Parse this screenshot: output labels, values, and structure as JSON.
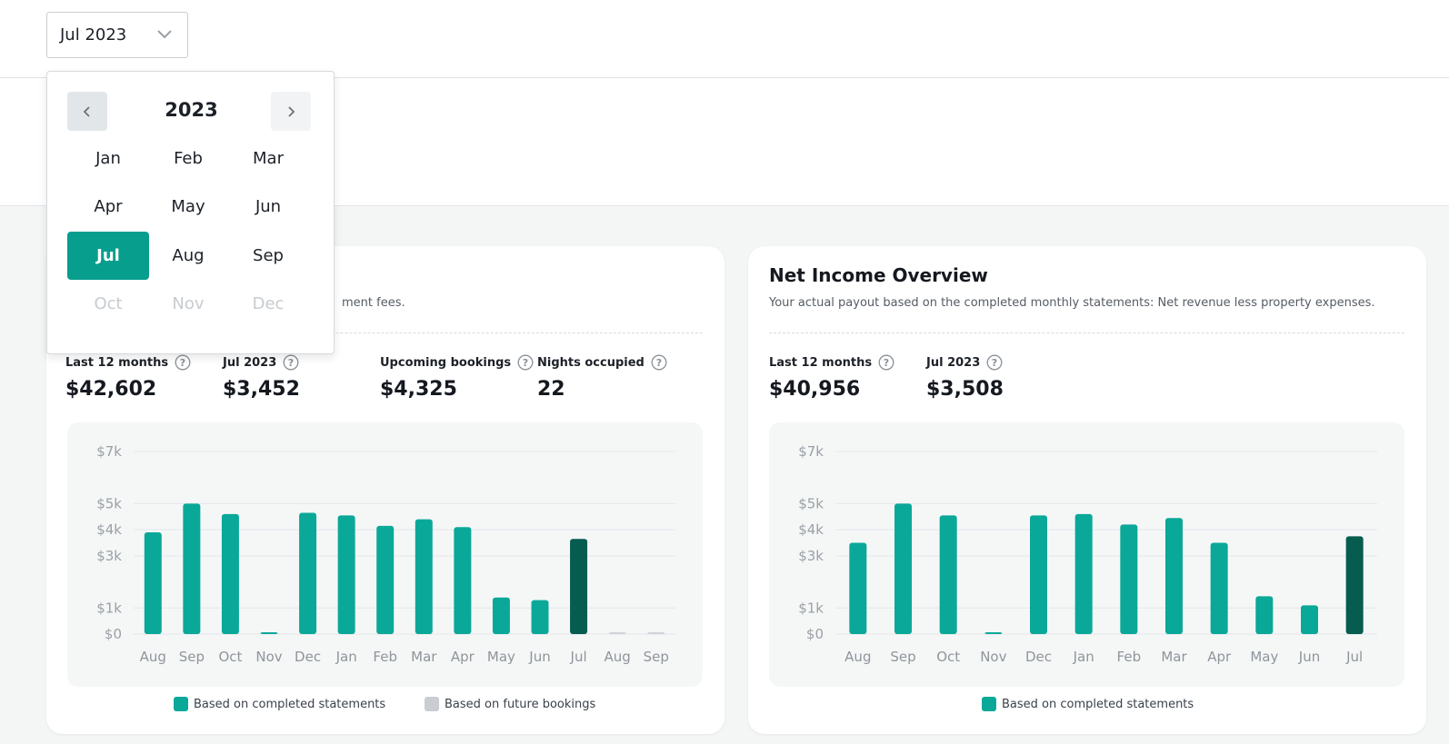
{
  "month_select": {
    "value": "Jul 2023",
    "icon": "chevron-down-icon"
  },
  "picker": {
    "year": "2023",
    "months": [
      {
        "label": "Jan",
        "state": "normal"
      },
      {
        "label": "Feb",
        "state": "normal"
      },
      {
        "label": "Mar",
        "state": "normal"
      },
      {
        "label": "Apr",
        "state": "normal"
      },
      {
        "label": "May",
        "state": "normal"
      },
      {
        "label": "Jun",
        "state": "normal"
      },
      {
        "label": "Jul",
        "state": "selected"
      },
      {
        "label": "Aug",
        "state": "normal"
      },
      {
        "label": "Sep",
        "state": "normal"
      },
      {
        "label": "Oct",
        "state": "disabled"
      },
      {
        "label": "Nov",
        "state": "disabled"
      },
      {
        "label": "Dec",
        "state": "disabled"
      }
    ]
  },
  "colors": {
    "accent": "#079e8d",
    "bar_completed": "#0aa898",
    "bar_current": "#055c4f",
    "bar_future": "#cfd3d7",
    "legend_future": "#c9cdd2"
  },
  "gross_card": {
    "subtitle_visible": "ment fees.",
    "stats": [
      {
        "label": "Last 12 months",
        "value": "$42,602"
      },
      {
        "label": "Jul 2023",
        "value": "$3,452"
      },
      {
        "label": "Upcoming bookings",
        "value": "$4,325"
      },
      {
        "label": "Nights occupied",
        "value": "22"
      }
    ],
    "legend": [
      {
        "label": "Based on completed statements",
        "color": "#0aa898"
      },
      {
        "label": "Based on future bookings",
        "color": "#c9cdd2"
      }
    ]
  },
  "net_card": {
    "title": "Net Income Overview",
    "subtitle": "Your actual payout based on the completed monthly statements: Net revenue less property expenses.",
    "stats": [
      {
        "label": "Last 12 months",
        "value": "$40,956"
      },
      {
        "label": "Jul 2023",
        "value": "$3,508"
      }
    ],
    "legend": [
      {
        "label": "Based on completed statements",
        "color": "#0aa898"
      }
    ]
  },
  "chart_data": [
    {
      "type": "bar",
      "categories": [
        "Aug",
        "Sep",
        "Oct",
        "Nov",
        "Dec",
        "Jan",
        "Feb",
        "Mar",
        "Apr",
        "May",
        "Jun",
        "Jul",
        "Aug",
        "Sep"
      ],
      "values": [
        3900,
        5000,
        4600,
        50,
        4650,
        4550,
        4150,
        4400,
        4100,
        1400,
        1300,
        3650,
        50,
        50
      ],
      "bar_kinds": [
        "completed",
        "completed",
        "completed",
        "completed",
        "completed",
        "completed",
        "completed",
        "completed",
        "completed",
        "completed",
        "completed",
        "current",
        "future",
        "future"
      ],
      "y_ticks": [
        0,
        1000,
        3000,
        4000,
        5000,
        7000
      ],
      "y_tick_labels": [
        "$0",
        "$1k",
        "$3k",
        "$4k",
        "$5k",
        "$7k"
      ],
      "ylim": [
        0,
        7000
      ],
      "grid": true,
      "legend": [
        "Based on completed statements",
        "Based on future bookings"
      ],
      "legend_position": "bottom"
    },
    {
      "type": "bar",
      "categories": [
        "Aug",
        "Sep",
        "Oct",
        "Nov",
        "Dec",
        "Jan",
        "Feb",
        "Mar",
        "Apr",
        "May",
        "Jun",
        "Jul"
      ],
      "values": [
        3500,
        5000,
        4550,
        50,
        4550,
        4600,
        4200,
        4450,
        3500,
        1450,
        1100,
        3750
      ],
      "bar_kinds": [
        "completed",
        "completed",
        "completed",
        "completed",
        "completed",
        "completed",
        "completed",
        "completed",
        "completed",
        "completed",
        "completed",
        "current"
      ],
      "y_ticks": [
        0,
        1000,
        3000,
        4000,
        5000,
        7000
      ],
      "y_tick_labels": [
        "$0",
        "$1k",
        "$3k",
        "$4k",
        "$5k",
        "$7k"
      ],
      "ylim": [
        0,
        7000
      ],
      "grid": true,
      "legend": [
        "Based on completed statements"
      ],
      "legend_position": "bottom"
    }
  ]
}
